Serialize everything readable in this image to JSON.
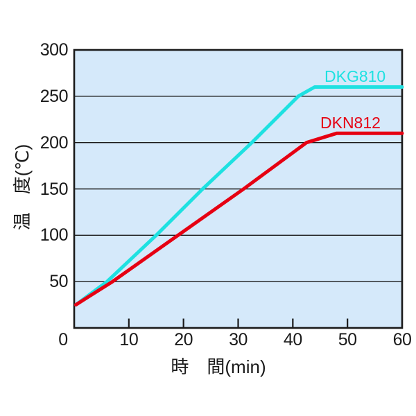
{
  "chart_data": {
    "type": "line",
    "title": "",
    "xlabel": "時　間(min)",
    "ylabel": "温　度(℃)",
    "xlim": [
      0,
      60
    ],
    "ylim": [
      0,
      300
    ],
    "x_tick_labels": [
      0,
      10,
      20,
      30,
      40,
      50,
      60
    ],
    "x_tick_marks": [
      10,
      20,
      30,
      40,
      50
    ],
    "y_gridlines": [
      50,
      100,
      150,
      200,
      250
    ],
    "y_tick_labels": [
      50,
      100,
      150,
      200,
      250,
      300
    ],
    "grid": "horizontal-only",
    "legend_position": "inline-labels-right",
    "colors": {
      "plot_background": "#d5e9fa",
      "axis": "#1a1a1a",
      "text": "#1a1a1a"
    },
    "series": [
      {
        "name": "DKG810",
        "color": "#1ee1e1",
        "plateau_temp": 260,
        "points": [
          [
            0.3,
            25
          ],
          [
            6,
            50
          ],
          [
            15,
            100
          ],
          [
            23.5,
            150
          ],
          [
            32.5,
            200
          ],
          [
            41,
            250
          ],
          [
            44,
            260
          ],
          [
            60,
            260
          ]
        ]
      },
      {
        "name": "DKN812",
        "color": "#e60012",
        "plateau_temp": 210,
        "points": [
          [
            0.3,
            25
          ],
          [
            7,
            50
          ],
          [
            19,
            100
          ],
          [
            31,
            150
          ],
          [
            42.5,
            200
          ],
          [
            48,
            210
          ],
          [
            60,
            210
          ]
        ]
      }
    ]
  }
}
